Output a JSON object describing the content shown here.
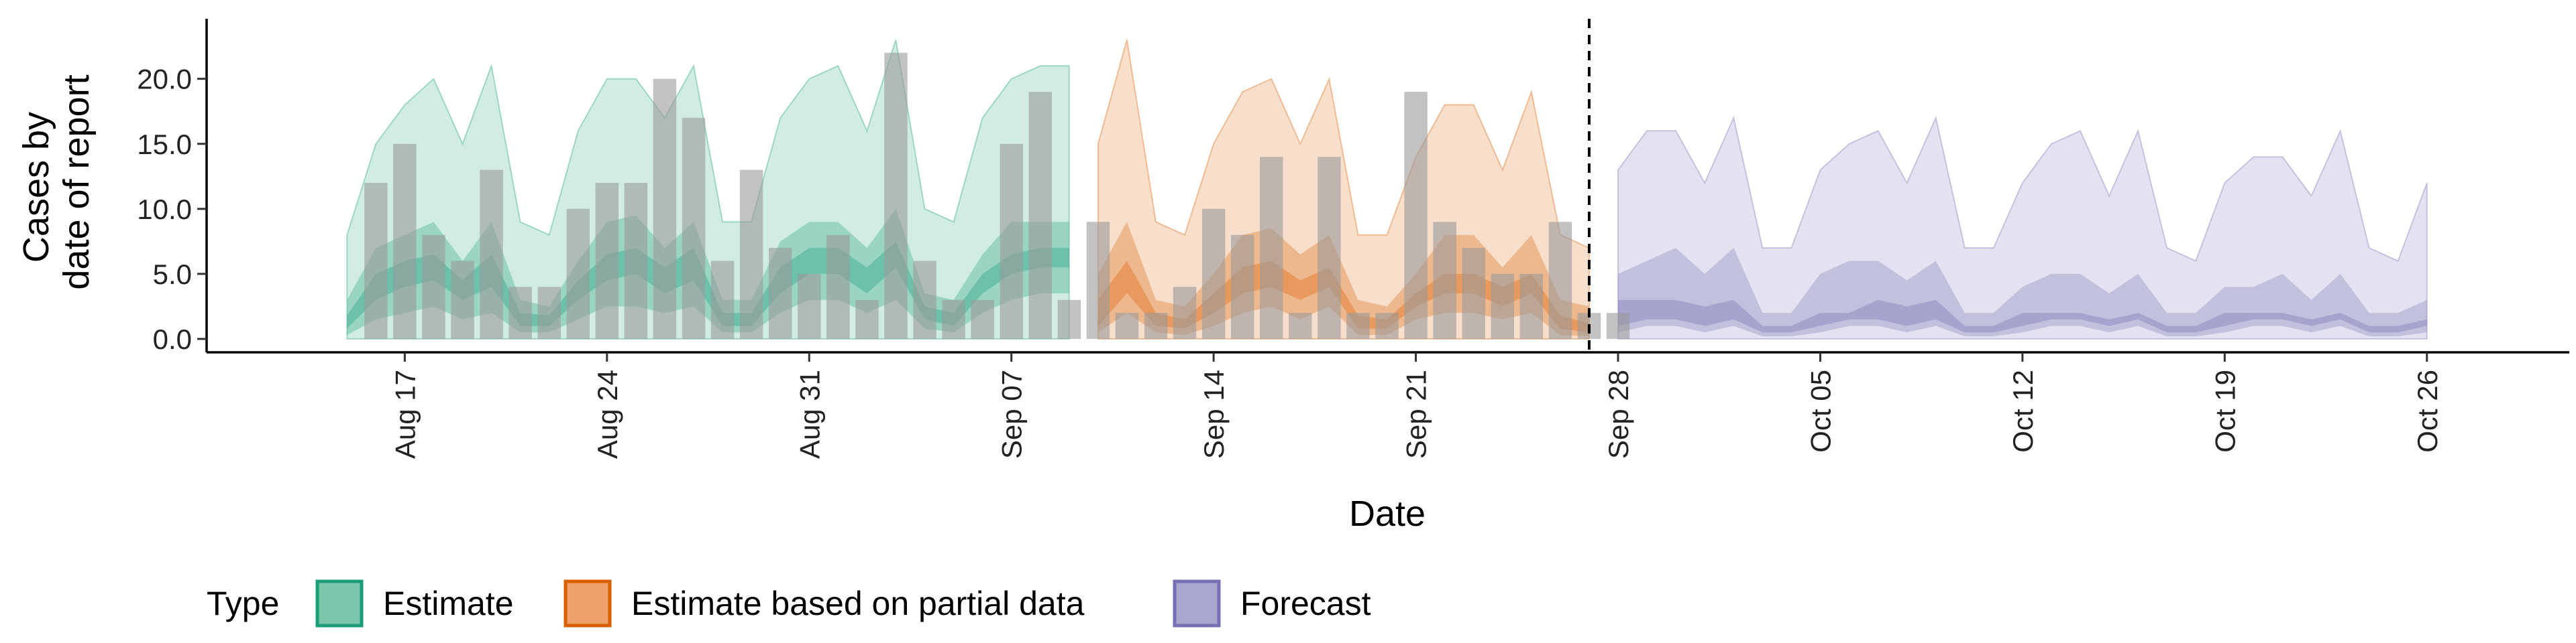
{
  "chart_data": {
    "type": "area",
    "xlabel": "Date",
    "ylabel_lines": [
      "Cases by",
      "date of report"
    ],
    "x_ticks": [
      "Aug 17",
      "Aug 24",
      "Aug 31",
      "Sep 07",
      "Sep 14",
      "Sep 21",
      "Sep 28",
      "Oct 05",
      "Oct 12",
      "Oct 19",
      "Oct 26"
    ],
    "x_range": [
      "2020-08-11",
      "2020-10-30"
    ],
    "y_ticks": [
      "0.0",
      "5.0",
      "10.0",
      "15.0",
      "20.0"
    ],
    "y_range": [
      0,
      24
    ],
    "grid": false,
    "forecast_date": "2020-09-27",
    "legend": {
      "title": "Type",
      "position": "bottom",
      "entries": [
        {
          "label": "Estimate",
          "fill": "#7cc6ab",
          "stroke": "#1b9e77"
        },
        {
          "label": "Estimate based on partial data",
          "fill": "#eda06a",
          "stroke": "#d95f02"
        },
        {
          "label": "Forecast",
          "fill": "#a9a6d0",
          "stroke": "#7570b3"
        }
      ]
    },
    "colors": {
      "Estimate": "#1b9e77",
      "Estimate based on partial data": "#d95f02",
      "Forecast": "#7570b3",
      "bars": "#999999"
    },
    "observed_cases": {
      "start": "2020-08-16",
      "values": [
        12,
        15,
        8,
        6,
        13,
        4,
        4,
        10,
        12,
        12,
        20,
        17,
        6,
        13,
        7,
        5,
        8,
        3,
        22,
        6,
        3,
        3,
        15,
        19,
        3,
        9,
        2,
        2,
        4,
        10,
        8,
        14,
        2,
        14,
        2,
        2,
        19,
        9,
        7,
        5,
        5,
        9,
        2,
        2
      ]
    },
    "series": [
      {
        "name": "Estimate",
        "start": "2020-08-15",
        "lower90": [
          0,
          0,
          0,
          0,
          0,
          0,
          0,
          0,
          0,
          0,
          0,
          0,
          0,
          0,
          0,
          0,
          0,
          0,
          0,
          0,
          0,
          0,
          0,
          0,
          0,
          0
        ],
        "upper90": [
          8,
          15,
          18,
          20,
          15,
          21,
          9,
          8,
          16,
          20,
          20,
          17,
          21,
          9,
          9,
          17,
          20,
          21,
          16,
          23,
          10,
          9,
          17,
          20,
          21,
          21
        ],
        "lower50": [
          0.3,
          1.5,
          2,
          2.5,
          1.5,
          2,
          0.5,
          0.5,
          1.5,
          2.5,
          2.5,
          2,
          2.5,
          0.5,
          0.5,
          2,
          3,
          3,
          2,
          3,
          0.8,
          0.5,
          2,
          3,
          3.5,
          3.5
        ],
        "upper50": [
          3,
          7,
          8,
          9,
          6,
          9,
          3,
          2.5,
          6,
          9,
          9.5,
          7,
          9,
          3,
          3,
          7.5,
          9,
          9,
          7,
          10,
          3.5,
          3,
          6.5,
          9,
          9,
          9
        ],
        "lower20": [
          0.8,
          3,
          4,
          4.5,
          3,
          4,
          1,
          1,
          3,
          4.5,
          5,
          3.5,
          4.5,
          1,
          1,
          3.5,
          5,
          5,
          3.5,
          5.5,
          1.5,
          1,
          3.5,
          5,
          5.5,
          5.5
        ],
        "upper20": [
          1.8,
          5,
          6,
          6.5,
          4.5,
          6.5,
          2,
          1.8,
          4.5,
          6.5,
          7,
          5.5,
          7,
          2,
          2,
          5.5,
          7,
          7,
          5.5,
          7.5,
          2.5,
          2,
          5,
          6.5,
          7,
          7
        ]
      },
      {
        "name": "Estimate based on partial data",
        "start": "2020-09-10",
        "lower90": [
          0,
          0,
          0,
          0,
          0,
          0,
          0,
          0,
          0,
          0,
          0,
          0,
          0,
          0,
          0,
          0,
          0,
          0
        ],
        "upper90": [
          15,
          23,
          9,
          8,
          15,
          19,
          20,
          15,
          20,
          8,
          8,
          14,
          18,
          18,
          13,
          19,
          8,
          7
        ],
        "lower50": [
          0.5,
          2,
          0.5,
          0.3,
          1,
          2,
          2.5,
          1.5,
          2.5,
          0.3,
          0.3,
          1.5,
          2,
          2,
          1.5,
          2,
          0.3,
          0.2
        ],
        "upper50": [
          5,
          9,
          3,
          2.5,
          5,
          8,
          8.5,
          6.5,
          8,
          3,
          2.5,
          5,
          8,
          8,
          5.5,
          8,
          3,
          2.5
        ],
        "lower20": [
          1,
          3.5,
          1,
          0.8,
          2,
          3.5,
          4,
          3,
          4,
          0.8,
          0.8,
          2.5,
          3.5,
          3.5,
          2.5,
          3.5,
          0.8,
          0.5
        ],
        "upper20": [
          3,
          6,
          2,
          1.5,
          3.5,
          5.5,
          6,
          4.5,
          5.5,
          1.8,
          1.5,
          3.5,
          5,
          5,
          4,
          5,
          1.8,
          1.2
        ]
      },
      {
        "name": "Forecast",
        "start": "2020-09-28",
        "lower90": [
          0,
          0,
          0,
          0,
          0,
          0,
          0,
          0,
          0,
          0,
          0,
          0,
          0,
          0,
          0,
          0,
          0,
          0,
          0,
          0,
          0,
          0,
          0,
          0,
          0,
          0,
          0,
          0,
          0
        ],
        "upper90": [
          13,
          16,
          16,
          12,
          17,
          7,
          7,
          13,
          15,
          16,
          12,
          17,
          7,
          7,
          12,
          15,
          16,
          11,
          16,
          7,
          6,
          12,
          14,
          14,
          11,
          16,
          7,
          6,
          12
        ],
        "lower50": [
          0.5,
          1,
          1,
          0.5,
          1,
          0.2,
          0.2,
          0.5,
          1,
          1,
          0.5,
          1,
          0.2,
          0.2,
          0.5,
          1,
          1,
          0.5,
          1,
          0.2,
          0.2,
          0.5,
          1,
          1,
          0.5,
          1,
          0.2,
          0.2,
          0.5
        ],
        "upper50": [
          5,
          6,
          7,
          5,
          7,
          2,
          2,
          5,
          6,
          6,
          4.5,
          6,
          2,
          2,
          4,
          5,
          5,
          3.5,
          5,
          2,
          2,
          4,
          4,
          5,
          3,
          5,
          2,
          2,
          3
        ],
        "lower20": [
          1,
          1.5,
          1.5,
          1,
          1.5,
          0.5,
          0.5,
          1,
          1.5,
          1.5,
          1,
          1.5,
          0.5,
          0.5,
          1,
          1.5,
          1.5,
          1,
          1.5,
          0.5,
          0.5,
          1,
          1.5,
          1.5,
          1,
          1.5,
          0.5,
          0.5,
          1
        ],
        "upper20": [
          3,
          3,
          3,
          2.5,
          3,
          1,
          1,
          2,
          2,
          3,
          2.5,
          3,
          1,
          1,
          2,
          2,
          2,
          1.5,
          2,
          1,
          1,
          2,
          2,
          2,
          1.5,
          2,
          1,
          1,
          1.5
        ]
      }
    ]
  }
}
